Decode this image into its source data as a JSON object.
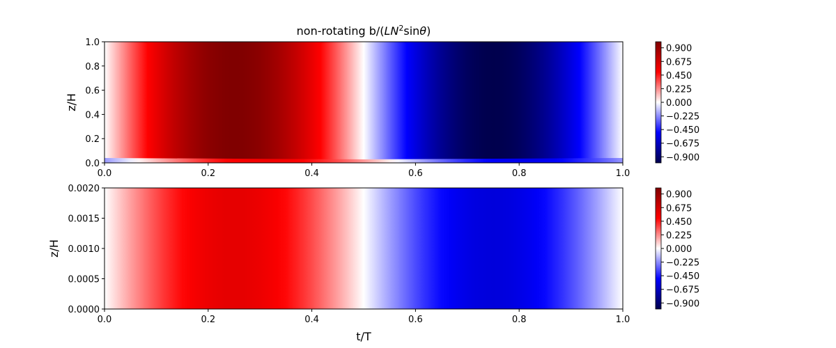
{
  "figure": {
    "title_prefix": "non-rotating b/(",
    "title_math": "LN",
    "title_sup": "2",
    "title_mid": "sin",
    "title_theta": "θ",
    "title_suffix": ")"
  },
  "chart_data": [
    {
      "type": "heatmap",
      "title": "non-rotating b/(LN²sinθ)",
      "xlabel": "",
      "ylabel": "z/H",
      "xlim": [
        0.0,
        1.0
      ],
      "ylim": [
        0.0,
        1.0
      ],
      "x_ticks": [
        "0.0",
        "0.2",
        "0.4",
        "0.6",
        "0.8",
        "1.0"
      ],
      "y_ticks": [
        "0.0",
        "0.2",
        "0.4",
        "0.6",
        "0.8",
        "1.0"
      ],
      "field": "b ≈ sin(2π t/T), uniform in z with a thin boundary layer near z/H = 0",
      "amplitude": 1.0,
      "colorbar": {
        "colormap": "seismic",
        "range": [
          -1.0,
          1.0
        ],
        "ticks": [
          "0.900",
          "0.675",
          "0.450",
          "0.225",
          "0.000",
          "−0.225",
          "−0.450",
          "−0.675",
          "−0.900"
        ],
        "tick_values": [
          0.9,
          0.675,
          0.45,
          0.225,
          0.0,
          -0.225,
          -0.45,
          -0.675,
          -0.9
        ]
      }
    },
    {
      "type": "heatmap",
      "title": "",
      "xlabel": "t/T",
      "ylabel": "z/H",
      "xlim": [
        0.0,
        1.0
      ],
      "ylim": [
        0.0,
        0.002
      ],
      "x_ticks": [
        "0.0",
        "0.2",
        "0.4",
        "0.6",
        "0.8",
        "1.0"
      ],
      "y_ticks": [
        "0.0000",
        "0.0005",
        "0.0010",
        "0.0015",
        "0.0020"
      ],
      "field": "b ≈ 0.6·sin(2π t/T) inside the bottom boundary layer",
      "amplitude": 0.6,
      "colorbar": {
        "colormap": "seismic",
        "range": [
          -1.0,
          1.0
        ],
        "ticks": [
          "0.900",
          "0.675",
          "0.450",
          "0.225",
          "0.000",
          "−0.225",
          "−0.450",
          "−0.675",
          "−0.900"
        ],
        "tick_values": [
          0.9,
          0.675,
          0.45,
          0.225,
          0.0,
          -0.225,
          -0.45,
          -0.675,
          -0.9
        ]
      }
    }
  ]
}
